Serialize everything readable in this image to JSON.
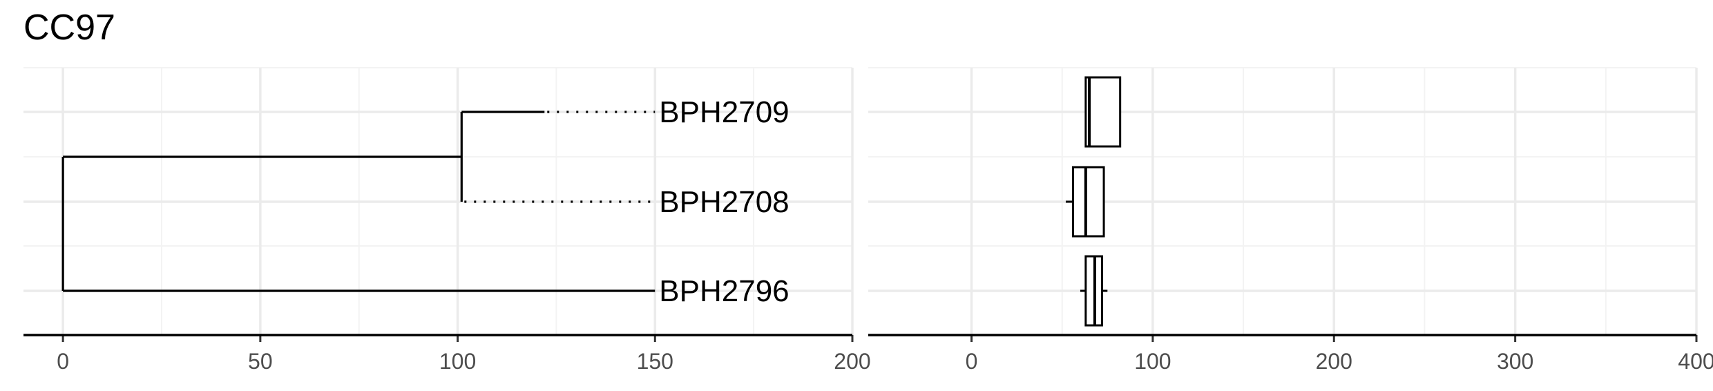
{
  "title": "CC97",
  "chart_data": [
    {
      "type": "tree",
      "xlim": [
        -10,
        200
      ],
      "x_ticks": [
        0,
        50,
        100,
        150,
        200
      ],
      "grid": true,
      "nodes": [
        {
          "id": "root",
          "x": 0
        },
        {
          "id": "n1",
          "x": 101,
          "parent": "root"
        }
      ],
      "tips": [
        {
          "label": "BPH2709",
          "branch_end": 122,
          "parent": "n1",
          "x_label": 150
        },
        {
          "label": "BPH2708",
          "branch_end": 101,
          "parent": "n1",
          "x_label": 150
        },
        {
          "label": "BPH2796",
          "branch_end": 150,
          "parent": "root",
          "x_label": 150
        }
      ]
    },
    {
      "type": "boxplot",
      "xlim": [
        -57,
        400
      ],
      "x_ticks": [
        0,
        100,
        200,
        300,
        400
      ],
      "grid": true,
      "categories": [
        "BPH2709",
        "BPH2708",
        "BPH2796"
      ],
      "boxes": [
        {
          "category": "BPH2709",
          "whisker_low": 63,
          "q1": 63,
          "median": 65,
          "q3": 82,
          "whisker_high": 82
        },
        {
          "category": "BPH2708",
          "whisker_low": 52,
          "q1": 56,
          "median": 63,
          "q3": 73,
          "whisker_high": 73
        },
        {
          "category": "BPH2796",
          "whisker_low": 60,
          "q1": 63,
          "median": 68,
          "q3": 72,
          "whisker_high": 75
        }
      ]
    }
  ]
}
